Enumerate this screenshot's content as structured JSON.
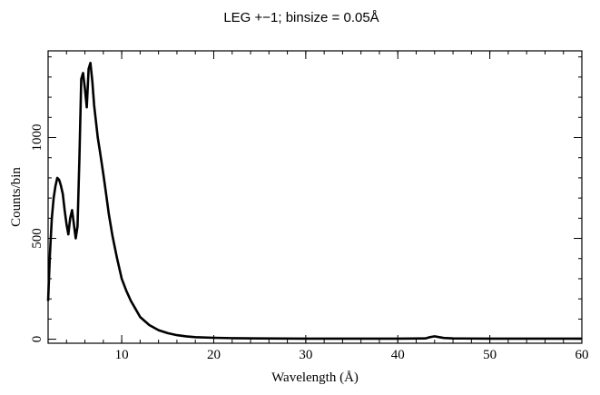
{
  "chart_data": {
    "type": "line",
    "title": "LEG +−1; binsize = 0.05Å",
    "xlabel": "Wavelength (Å)",
    "ylabel": "Counts/bin",
    "xlim": [
      2,
      60
    ],
    "ylim": [
      -20,
      1430
    ],
    "grid": false,
    "legend": "none",
    "x_ticks": [
      10,
      20,
      30,
      40,
      50,
      60
    ],
    "y_ticks": [
      0,
      500,
      1000
    ],
    "series": [
      {
        "color": "#000000",
        "x": [
          2.0,
          2.2,
          2.4,
          2.6,
          2.8,
          3.0,
          3.2,
          3.4,
          3.6,
          3.8,
          4.0,
          4.2,
          4.4,
          4.6,
          4.8,
          5.0,
          5.2,
          5.4,
          5.6,
          5.8,
          6.0,
          6.2,
          6.4,
          6.6,
          6.8,
          7.0,
          7.2,
          7.4,
          7.6,
          7.8,
          8.0,
          8.3,
          8.6,
          9.0,
          9.5,
          10.0,
          10.5,
          11.0,
          11.5,
          12.0,
          13.0,
          14.0,
          15.0,
          16.0,
          17.0,
          18.0,
          20.0,
          22.0,
          25.0,
          30.0,
          35.0,
          40.0,
          43.0,
          43.5,
          44.0,
          44.5,
          45.0,
          46.0,
          50.0,
          55.0,
          60.0
        ],
        "y": [
          190,
          420,
          600,
          700,
          760,
          800,
          790,
          760,
          720,
          640,
          570,
          520,
          600,
          640,
          570,
          500,
          560,
          900,
          1290,
          1320,
          1240,
          1150,
          1340,
          1370,
          1280,
          1160,
          1080,
          1000,
          940,
          880,
          820,
          720,
          620,
          510,
          400,
          300,
          240,
          190,
          150,
          110,
          70,
          45,
          30,
          20,
          14,
          10,
          7,
          5,
          4,
          3,
          3,
          3,
          4,
          10,
          14,
          10,
          6,
          4,
          3,
          3,
          3
        ]
      }
    ]
  }
}
